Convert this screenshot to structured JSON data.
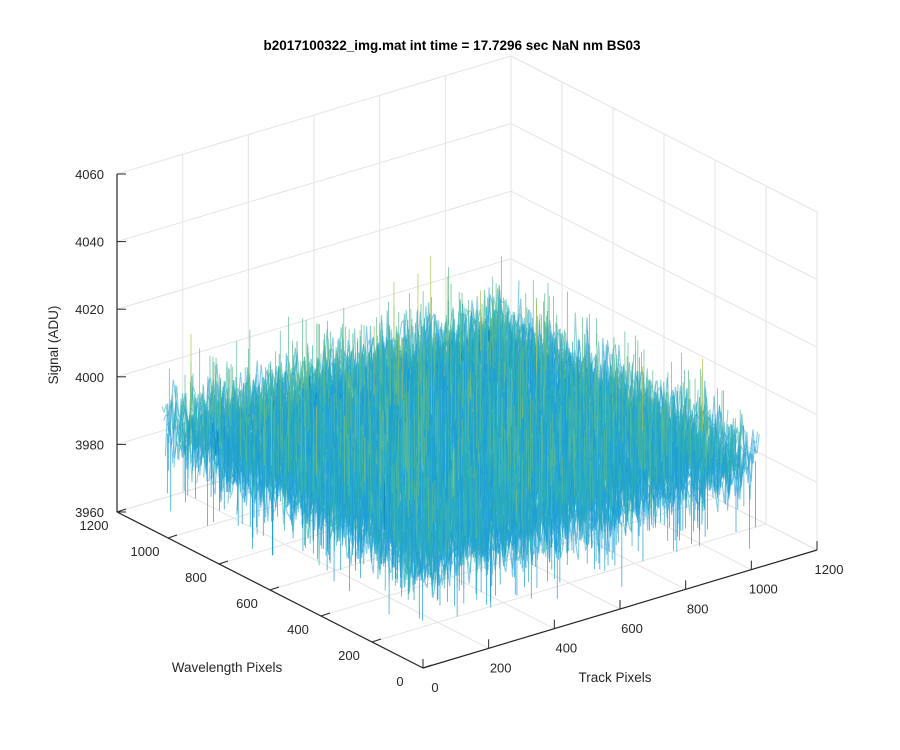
{
  "chart_data": {
    "type": "surface",
    "title": "b2017100322_img.mat int time = 17.7296 sec  NaN nm BS03",
    "xlabel": "Track Pixels",
    "ylabel": "Wavelength Pixels",
    "zlabel": "Signal (ADU)",
    "xlim": [
      0,
      1200
    ],
    "ylim": [
      0,
      1200
    ],
    "zlim": [
      3960,
      4060
    ],
    "x_ticks": [
      "0",
      "200",
      "400",
      "600",
      "800",
      "1000",
      "1200"
    ],
    "y_ticks": [
      "0",
      "200",
      "400",
      "600",
      "800",
      "1000",
      "1200"
    ],
    "z_ticks": [
      "3960",
      "3980",
      "4000",
      "4020",
      "4040",
      "4060"
    ],
    "grid": true,
    "surface": {
      "x_range": [
        0,
        1024
      ],
      "y_range": [
        0,
        1024
      ],
      "mean": 3992,
      "noise_range": [
        3970,
        4040
      ],
      "colormap": [
        "#0072bd",
        "#1f9fd6",
        "#2fb1b7",
        "#5dbb8f",
        "#a9c255",
        "#e6cf3a"
      ]
    },
    "colors": {
      "grid": "#e3e3e3",
      "axis": "#262626",
      "background": "#ffffff"
    }
  }
}
